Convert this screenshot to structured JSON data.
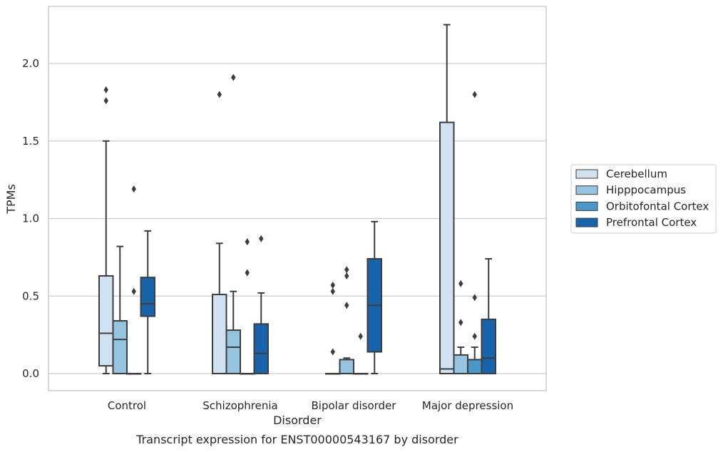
{
  "chart_data": {
    "type": "boxplot",
    "caption": "Transcript expression for ENST00000543167 by disorder",
    "xlabel": "Disorder",
    "ylabel": "TPMs",
    "ylim": [
      -0.11,
      2.37
    ],
    "yticks": [
      0.0,
      0.5,
      1.0,
      1.5,
      2.0
    ],
    "ytick_labels": [
      "0.0",
      "0.5",
      "1.0",
      "1.5",
      "2.0"
    ],
    "grid": "horizontal",
    "legend_position": "right",
    "categories": [
      "Control",
      "Schizophrenia",
      "Bipolar disorder",
      "Major depression"
    ],
    "series": [
      {
        "name": "Cerebellum",
        "color": "#d0e1f2",
        "boxes": [
          {
            "q1": 0.05,
            "median": 0.26,
            "q3": 0.63,
            "whisker_low": 0.0,
            "whisker_high": 1.5,
            "outliers": [
              1.76,
              1.83
            ]
          },
          {
            "q1": 0.0,
            "median": 0.0,
            "q3": 0.51,
            "whisker_low": 0.0,
            "whisker_high": 0.84,
            "outliers": [
              1.8
            ]
          },
          {
            "q1": 0.0,
            "median": 0.0,
            "q3": 0.0,
            "whisker_low": 0.0,
            "whisker_high": 0.0,
            "outliers": [
              0.14,
              0.53,
              0.57
            ]
          },
          {
            "q1": 0.0,
            "median": 0.03,
            "q3": 1.62,
            "whisker_low": 0.0,
            "whisker_high": 2.25,
            "outliers": []
          }
        ]
      },
      {
        "name": "Hipppocampus",
        "color": "#94c4df",
        "boxes": [
          {
            "q1": 0.0,
            "median": 0.22,
            "q3": 0.34,
            "whisker_low": 0.0,
            "whisker_high": 0.82,
            "outliers": []
          },
          {
            "q1": 0.0,
            "median": 0.17,
            "q3": 0.28,
            "whisker_low": 0.0,
            "whisker_high": 0.53,
            "outliers": [
              1.91
            ]
          },
          {
            "q1": 0.0,
            "median": 0.0,
            "q3": 0.09,
            "whisker_low": 0.0,
            "whisker_high": 0.1,
            "outliers": [
              0.44,
              0.63,
              0.67
            ]
          },
          {
            "q1": 0.0,
            "median": 0.0,
            "q3": 0.12,
            "whisker_low": 0.0,
            "whisker_high": 0.17,
            "outliers": [
              0.33,
              0.58
            ]
          }
        ]
      },
      {
        "name": "Orbitofontal Cortex",
        "color": "#4a98c9",
        "boxes": [
          {
            "q1": 0.0,
            "median": 0.0,
            "q3": 0.0,
            "whisker_low": 0.0,
            "whisker_high": 0.0,
            "outliers": [
              0.53,
              1.19
            ]
          },
          {
            "q1": 0.0,
            "median": 0.0,
            "q3": 0.0,
            "whisker_low": 0.0,
            "whisker_high": 0.0,
            "outliers": [
              0.65,
              0.85
            ]
          },
          {
            "q1": 0.0,
            "median": 0.0,
            "q3": 0.0,
            "whisker_low": 0.0,
            "whisker_high": 0.0,
            "outliers": [
              0.24
            ]
          },
          {
            "q1": 0.0,
            "median": 0.0,
            "q3": 0.09,
            "whisker_low": 0.0,
            "whisker_high": 0.17,
            "outliers": [
              0.24,
              0.49,
              1.8
            ]
          }
        ]
      },
      {
        "name": "Prefrontal Cortex",
        "color": "#1764ab",
        "boxes": [
          {
            "q1": 0.37,
            "median": 0.45,
            "q3": 0.62,
            "whisker_low": 0.0,
            "whisker_high": 0.92,
            "outliers": []
          },
          {
            "q1": 0.0,
            "median": 0.13,
            "q3": 0.32,
            "whisker_low": 0.0,
            "whisker_high": 0.52,
            "outliers": [
              0.87
            ]
          },
          {
            "q1": 0.14,
            "median": 0.44,
            "q3": 0.74,
            "whisker_low": 0.0,
            "whisker_high": 0.98,
            "outliers": []
          },
          {
            "q1": 0.0,
            "median": 0.1,
            "q3": 0.35,
            "whisker_low": 0.0,
            "whisker_high": 0.74,
            "outliers": []
          }
        ]
      }
    ]
  }
}
